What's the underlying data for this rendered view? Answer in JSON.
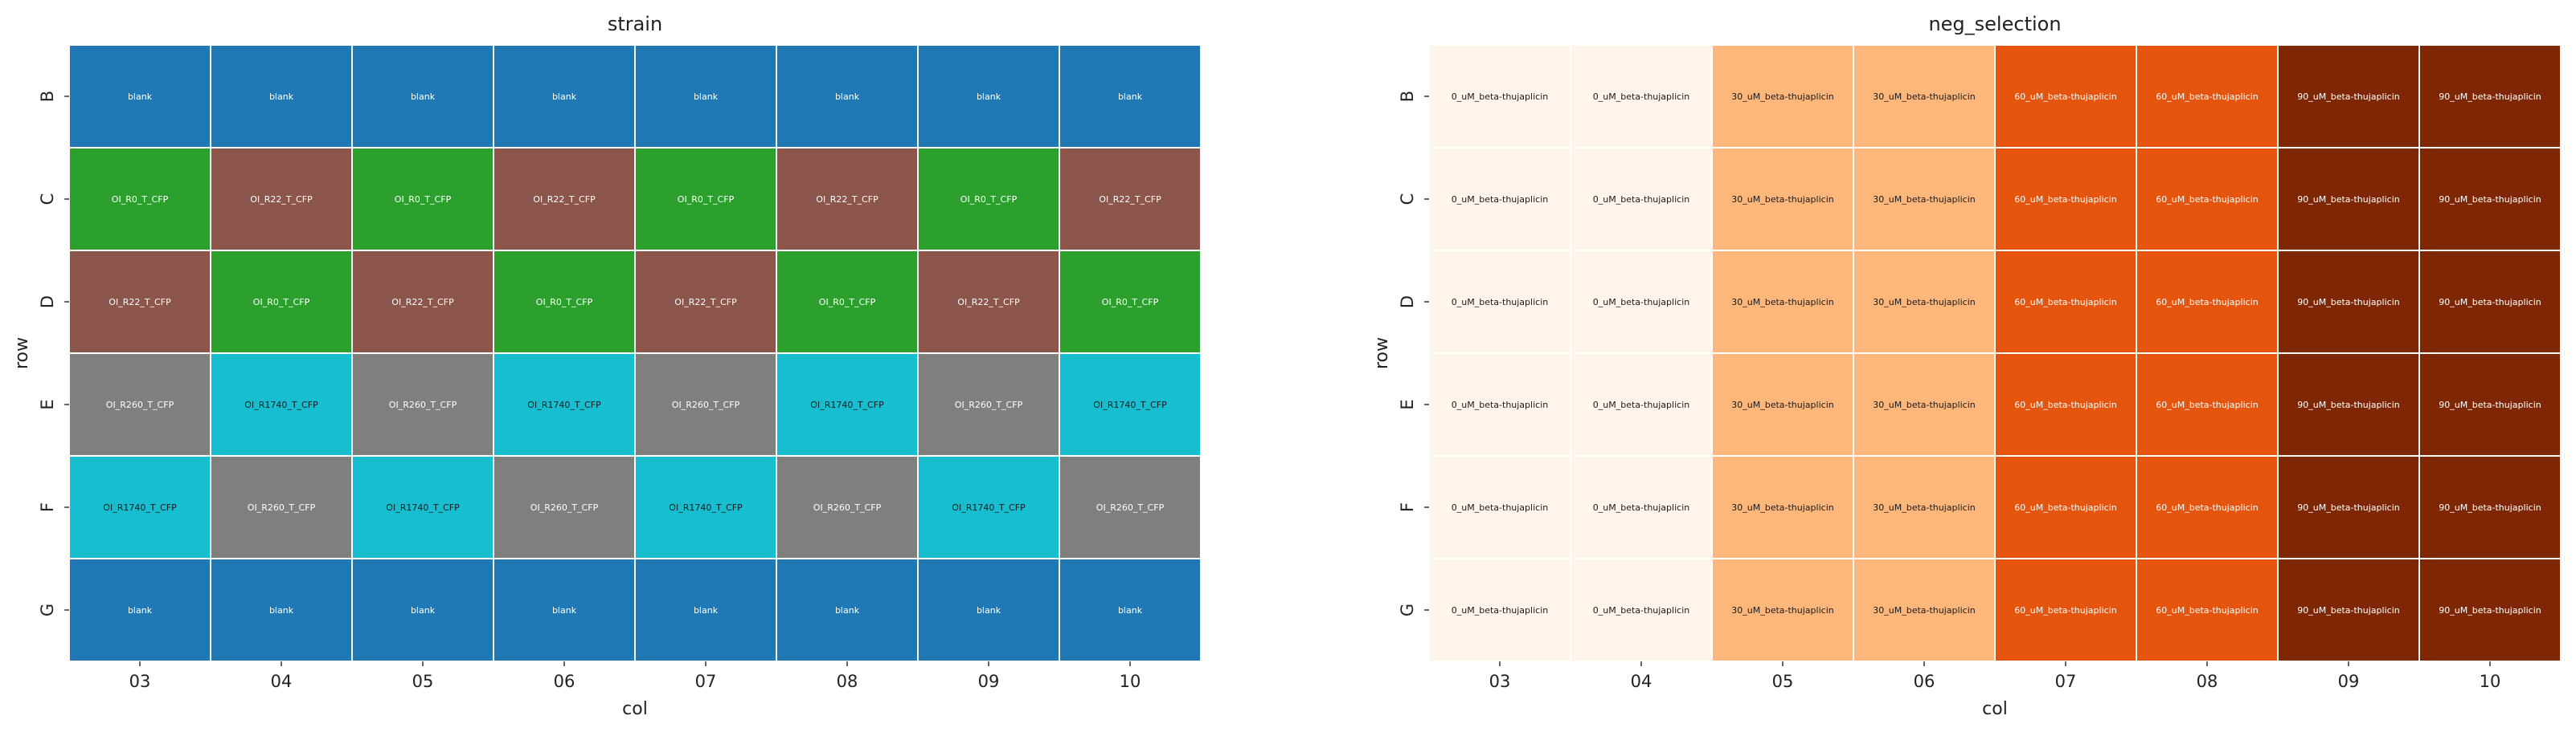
{
  "chart_data": [
    {
      "type": "heatmap",
      "title": "strain",
      "xlabel": "col",
      "ylabel": "row",
      "x": [
        "03",
        "04",
        "05",
        "06",
        "07",
        "08",
        "09",
        "10"
      ],
      "y": [
        "B",
        "C",
        "D",
        "E",
        "F",
        "G"
      ],
      "cells": [
        [
          "blank",
          "blank",
          "blank",
          "blank",
          "blank",
          "blank",
          "blank",
          "blank"
        ],
        [
          "OI_R0_T_CFP",
          "OI_R22_T_CFP",
          "OI_R0_T_CFP",
          "OI_R22_T_CFP",
          "OI_R0_T_CFP",
          "OI_R22_T_CFP",
          "OI_R0_T_CFP",
          "OI_R22_T_CFP"
        ],
        [
          "OI_R22_T_CFP",
          "OI_R0_T_CFP",
          "OI_R22_T_CFP",
          "OI_R0_T_CFP",
          "OI_R22_T_CFP",
          "OI_R0_T_CFP",
          "OI_R22_T_CFP",
          "OI_R0_T_CFP"
        ],
        [
          "OI_R260_T_CFP",
          "OI_R1740_T_CFP",
          "OI_R260_T_CFP",
          "OI_R1740_T_CFP",
          "OI_R260_T_CFP",
          "OI_R1740_T_CFP",
          "OI_R260_T_CFP",
          "OI_R1740_T_CFP"
        ],
        [
          "OI_R1740_T_CFP",
          "OI_R260_T_CFP",
          "OI_R1740_T_CFP",
          "OI_R260_T_CFP",
          "OI_R1740_T_CFP",
          "OI_R260_T_CFP",
          "OI_R1740_T_CFP",
          "OI_R260_T_CFP"
        ],
        [
          "blank",
          "blank",
          "blank",
          "blank",
          "blank",
          "blank",
          "blank",
          "blank"
        ]
      ],
      "colors": {
        "blank": "#1f77b4",
        "OI_R0_T_CFP": "#2ca02c",
        "OI_R22_T_CFP": "#8c564b",
        "OI_R260_T_CFP": "#7f7f7f",
        "OI_R1740_T_CFP": "#17becf"
      },
      "text_colors": {
        "blank": "#ffffff",
        "OI_R0_T_CFP": "#ffffff",
        "OI_R22_T_CFP": "#ffffff",
        "OI_R260_T_CFP": "#ffffff",
        "OI_R1740_T_CFP": "#1a1a1a"
      },
      "grid": false
    },
    {
      "type": "heatmap",
      "title": "neg_selection",
      "xlabel": "col",
      "ylabel": "row",
      "x": [
        "03",
        "04",
        "05",
        "06",
        "07",
        "08",
        "09",
        "10"
      ],
      "y": [
        "B",
        "C",
        "D",
        "E",
        "F",
        "G"
      ],
      "cells": [
        [
          "0_uM_beta-thujaplicin",
          "0_uM_beta-thujaplicin",
          "30_uM_beta-thujaplicin",
          "30_uM_beta-thujaplicin",
          "60_uM_beta-thujaplicin",
          "60_uM_beta-thujaplicin",
          "90_uM_beta-thujaplicin",
          "90_uM_beta-thujaplicin"
        ],
        [
          "0_uM_beta-thujaplicin",
          "0_uM_beta-thujaplicin",
          "30_uM_beta-thujaplicin",
          "30_uM_beta-thujaplicin",
          "60_uM_beta-thujaplicin",
          "60_uM_beta-thujaplicin",
          "90_uM_beta-thujaplicin",
          "90_uM_beta-thujaplicin"
        ],
        [
          "0_uM_beta-thujaplicin",
          "0_uM_beta-thujaplicin",
          "30_uM_beta-thujaplicin",
          "30_uM_beta-thujaplicin",
          "60_uM_beta-thujaplicin",
          "60_uM_beta-thujaplicin",
          "90_uM_beta-thujaplicin",
          "90_uM_beta-thujaplicin"
        ],
        [
          "0_uM_beta-thujaplicin",
          "0_uM_beta-thujaplicin",
          "30_uM_beta-thujaplicin",
          "30_uM_beta-thujaplicin",
          "60_uM_beta-thujaplicin",
          "60_uM_beta-thujaplicin",
          "90_uM_beta-thujaplicin",
          "90_uM_beta-thujaplicin"
        ],
        [
          "0_uM_beta-thujaplicin",
          "0_uM_beta-thujaplicin",
          "30_uM_beta-thujaplicin",
          "30_uM_beta-thujaplicin",
          "60_uM_beta-thujaplicin",
          "60_uM_beta-thujaplicin",
          "90_uM_beta-thujaplicin",
          "90_uM_beta-thujaplicin"
        ],
        [
          "0_uM_beta-thujaplicin",
          "0_uM_beta-thujaplicin",
          "30_uM_beta-thujaplicin",
          "30_uM_beta-thujaplicin",
          "60_uM_beta-thujaplicin",
          "60_uM_beta-thujaplicin",
          "90_uM_beta-thujaplicin",
          "90_uM_beta-thujaplicin"
        ]
      ],
      "colors": {
        "0_uM_beta-thujaplicin": "#fff5eb",
        "30_uM_beta-thujaplicin": "#fdb77a",
        "60_uM_beta-thujaplicin": "#e6550d",
        "90_uM_beta-thujaplicin": "#7f2704"
      },
      "text_colors": {
        "0_uM_beta-thujaplicin": "#1a1a1a",
        "30_uM_beta-thujaplicin": "#1a1a1a",
        "60_uM_beta-thujaplicin": "#ffffff",
        "90_uM_beta-thujaplicin": "#ffffff"
      },
      "grid": false
    }
  ]
}
